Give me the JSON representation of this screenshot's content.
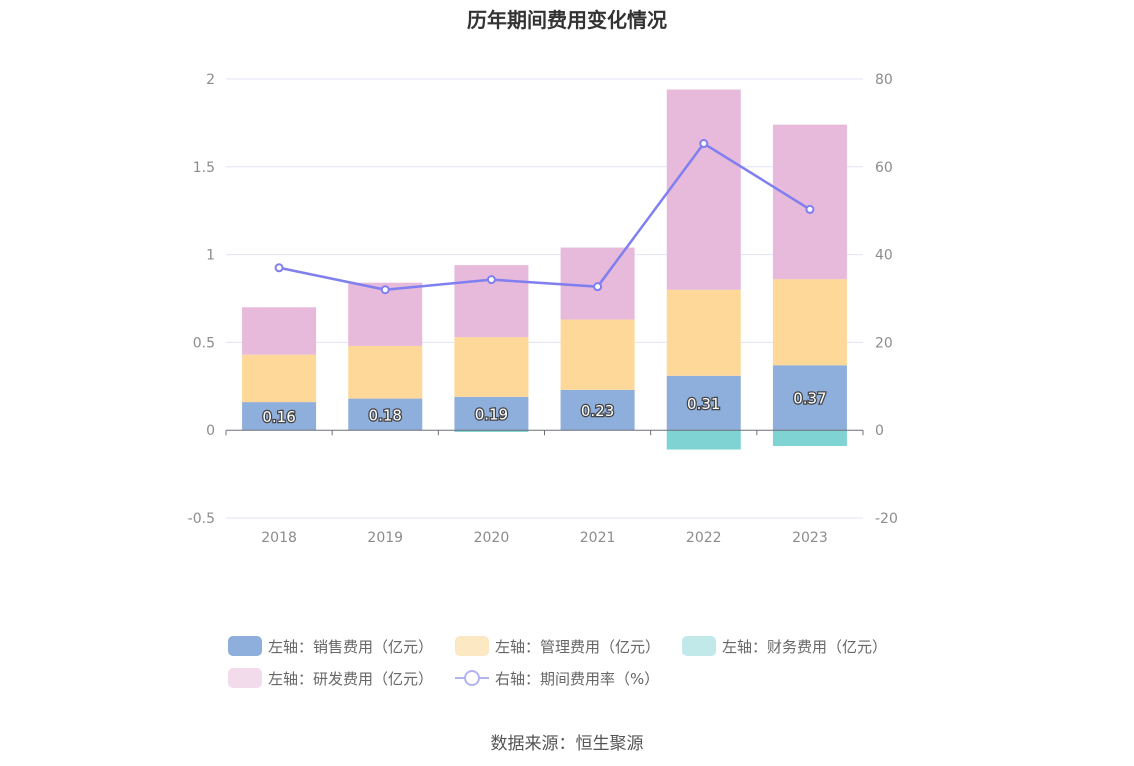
{
  "title": "历年期间费用变化情况",
  "source": "数据来源：恒生聚源",
  "chart_data": {
    "type": "bar",
    "stacked": true,
    "categories": [
      "2018",
      "2019",
      "2020",
      "2021",
      "2022",
      "2023"
    ],
    "series": [
      {
        "name": "左轴：销售费用（亿元）",
        "axis": "left",
        "color": "#8eaedb",
        "legend_color": "#8eaedb",
        "values": [
          0.16,
          0.18,
          0.19,
          0.23,
          0.31,
          0.37
        ],
        "labels": [
          "0.16",
          "0.18",
          "0.19",
          "0.23",
          "0.31",
          "0.37"
        ]
      },
      {
        "name": "左轴：管理费用（亿元）",
        "axis": "left",
        "color": "#fdd899",
        "legend_color": "#fde8c4",
        "values": [
          0.27,
          0.3,
          0.34,
          0.4,
          0.49,
          0.49
        ]
      },
      {
        "name": "左轴：财务费用（亿元）",
        "axis": "left",
        "color": "#7fd3d3",
        "legend_color": "#c1e9ea",
        "values": [
          0.0,
          0.0,
          -0.01,
          0.0,
          -0.11,
          -0.09
        ]
      },
      {
        "name": "左轴：研发费用（亿元）",
        "axis": "left",
        "color": "#e7b9da",
        "legend_color": "#f2dbeb",
        "values": [
          0.27,
          0.36,
          0.41,
          0.41,
          1.14,
          0.88
        ]
      },
      {
        "name": "右轴：期间费用率（%）",
        "axis": "right",
        "type": "line",
        "color": "#7f7ff0",
        "legend_color": "#b3b3f0",
        "values": [
          37.0,
          32.0,
          34.3,
          32.7,
          65.3,
          50.3
        ]
      }
    ],
    "y_left": {
      "min": -0.5,
      "max": 2,
      "ticks": [
        "-0.5",
        "0",
        "0.5",
        "1",
        "1.5",
        "2"
      ],
      "tick_values": [
        -0.5,
        0,
        0.5,
        1,
        1.5,
        2
      ]
    },
    "y_right": {
      "min": -20,
      "max": 80,
      "ticks": [
        "-20",
        "0",
        "20",
        "40",
        "60",
        "80"
      ],
      "tick_values": [
        -20,
        0,
        20,
        40,
        60,
        80
      ]
    },
    "grid": true,
    "legend_position": "bottom"
  }
}
